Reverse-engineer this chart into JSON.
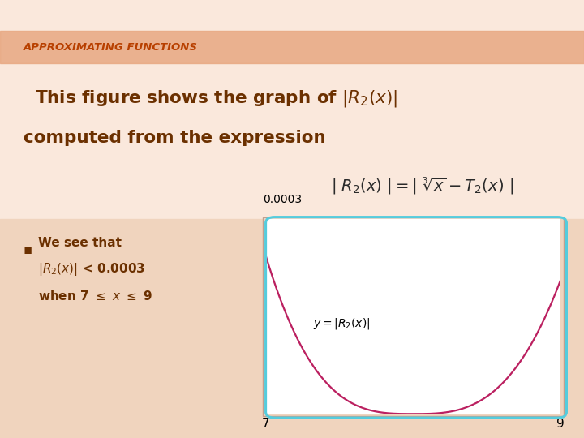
{
  "title_header": "APPROXIMATING FUNCTIONS",
  "header_color": "#B84000",
  "header_bg_color": "#E8A882",
  "bg_color": "#F5DDD0",
  "bg_color_light": "#FDF0E8",
  "text_color": "#6B3000",
  "plot_bg": "#FFFFFF",
  "plot_border_color": "#55CCDD",
  "curve_color": "#BB2060",
  "x_min": 7,
  "x_max": 9,
  "y_min": 0,
  "y_max": 0.0003
}
